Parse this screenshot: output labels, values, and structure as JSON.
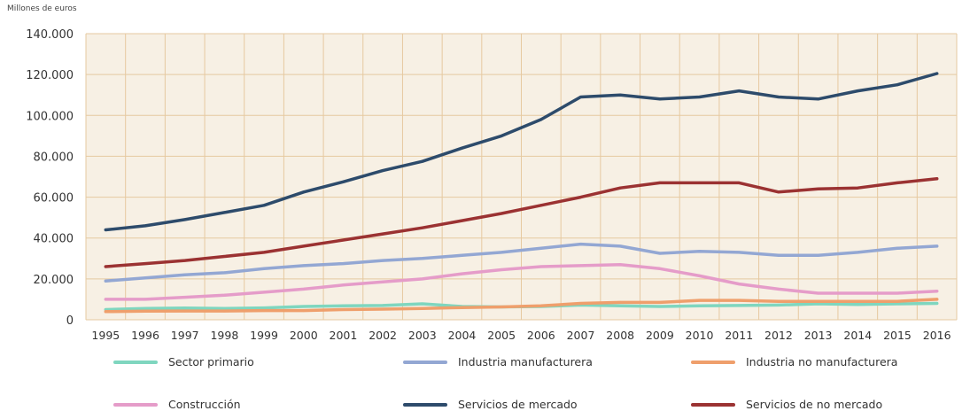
{
  "chart_data": {
    "type": "line",
    "ylabel": "Millones de euros",
    "ylim": [
      0,
      140000
    ],
    "yticks": [
      0,
      20000,
      40000,
      60000,
      80000,
      100000,
      120000,
      140000
    ],
    "ytick_labels": [
      "0",
      "20.000",
      "40.000",
      "60.000",
      "80.000",
      "100.000",
      "120.000",
      "140.000"
    ],
    "categories": [
      "1995",
      "1996",
      "1997",
      "1998",
      "1999",
      "2000",
      "2001",
      "2002",
      "2003",
      "2004",
      "2005",
      "2006",
      "2007",
      "2008",
      "2009",
      "2010",
      "2011",
      "2012",
      "2013",
      "2014",
      "2015",
      "2016"
    ],
    "grid": true,
    "legend_position": "bottom",
    "series": [
      {
        "name": "Sector primario",
        "color": "#7fd6bf",
        "values": [
          5000,
          5500,
          5700,
          5500,
          5800,
          6500,
          6800,
          7000,
          7800,
          6500,
          6300,
          6500,
          7200,
          6800,
          6500,
          6800,
          7000,
          7200,
          7800,
          7500,
          7800,
          8000
        ]
      },
      {
        "name": "Industria manufacturera",
        "color": "#93a7d3",
        "values": [
          19000,
          20500,
          22000,
          23000,
          25000,
          26500,
          27500,
          29000,
          30000,
          31500,
          33000,
          35000,
          37000,
          36000,
          32500,
          33500,
          33000,
          31500,
          31500,
          33000,
          35000,
          36000
        ]
      },
      {
        "name": "Industria no manufacturera",
        "color": "#ef9f6c",
        "values": [
          4000,
          4200,
          4300,
          4300,
          4500,
          4500,
          5000,
          5200,
          5500,
          6000,
          6300,
          6800,
          8000,
          8500,
          8500,
          9500,
          9500,
          9000,
          9000,
          9000,
          9000,
          10000
        ]
      },
      {
        "name": "Construcción",
        "color": "#e59cc9",
        "values": [
          10000,
          10000,
          11000,
          12000,
          13500,
          15000,
          17000,
          18500,
          20000,
          22500,
          24500,
          26000,
          26500,
          27000,
          25000,
          21500,
          17500,
          15000,
          13000,
          13000,
          13000,
          14000
        ]
      },
      {
        "name": "Servicios de mercado",
        "color": "#2d4b6b",
        "values": [
          44000,
          46000,
          49000,
          52500,
          56000,
          62500,
          67500,
          73000,
          77500,
          84000,
          90000,
          98000,
          109000,
          110000,
          108000,
          109000,
          112000,
          109000,
          108000,
          112000,
          115000,
          120500
        ]
      },
      {
        "name": "Servicios de no mercado",
        "color": "#9b3232",
        "values": [
          26000,
          27500,
          29000,
          31000,
          33000,
          36000,
          39000,
          42000,
          45000,
          48500,
          52000,
          56000,
          60000,
          64500,
          67000,
          67000,
          67000,
          62500,
          64000,
          64500,
          67000,
          69000
        ]
      }
    ]
  }
}
